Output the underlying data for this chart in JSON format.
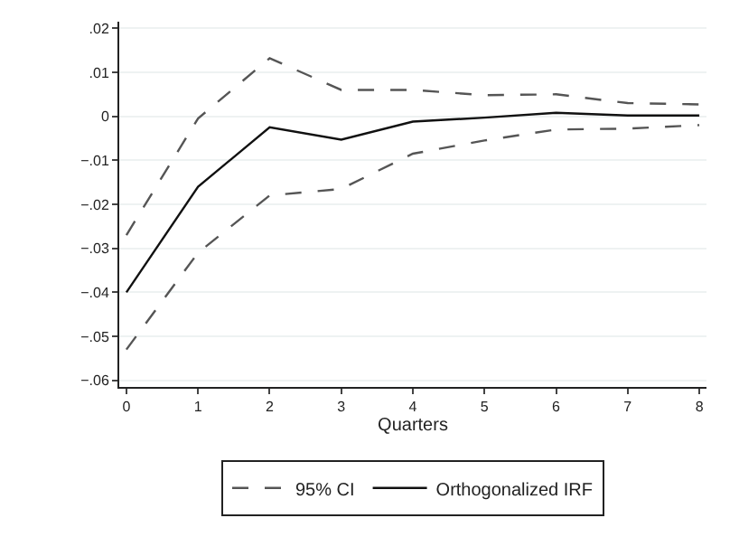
{
  "chart_data": {
    "type": "line",
    "xlabel": "Quarters",
    "x": [
      0,
      1,
      2,
      3,
      4,
      5,
      6,
      7,
      8
    ],
    "series": [
      {
        "name": "95% CI",
        "color": "#555555",
        "line_style": "dashed",
        "values": [
          -0.027,
          -0.0005,
          0.0132,
          0.006,
          0.006,
          0.0048,
          0.005,
          0.003,
          0.0027
        ]
      },
      {
        "color": "#555555",
        "line_style": "dashed",
        "values": [
          -0.053,
          -0.031,
          -0.018,
          -0.0165,
          -0.0085,
          -0.0055,
          -0.003,
          -0.0028,
          -0.002
        ]
      },
      {
        "name": "Orthogonalized IRF",
        "color": "#111111",
        "line_style": "solid",
        "values": [
          -0.04,
          -0.016,
          -0.0025,
          -0.0053,
          -0.0012,
          -0.0003,
          0.0008,
          0.0002,
          0.0002
        ]
      }
    ],
    "xlim": [
      -0.1,
      8.1
    ],
    "xticks": [
      0,
      1,
      2,
      3,
      4,
      5,
      6,
      7,
      8
    ],
    "ylim": [
      -0.0615,
      0.0215
    ],
    "yticks": [
      {
        "value": 0.02,
        "label": ".02"
      },
      {
        "value": 0.01,
        "label": ".01"
      },
      0,
      {
        "value": -0.01,
        "label": "−.01"
      },
      {
        "value": -0.02,
        "label": "−.02"
      },
      {
        "value": -0.03,
        "label": "−.03"
      },
      {
        "value": -0.04,
        "label": "−.04"
      },
      {
        "value": -0.05,
        "label": "−.05"
      },
      {
        "value": -0.06,
        "label": "−.06"
      }
    ],
    "grid": "y",
    "legend": "bottom",
    "marker": "none"
  }
}
